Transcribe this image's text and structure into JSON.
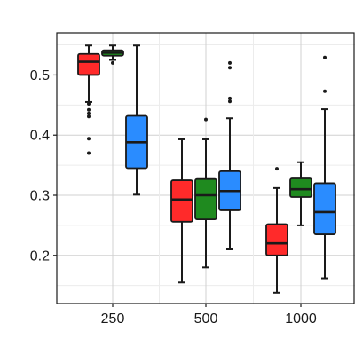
{
  "chart_data": {
    "type": "box",
    "title": "",
    "xlabel": "",
    "ylabel": "",
    "categories": [
      "250",
      "500",
      "1000"
    ],
    "ylim": [
      0.12,
      0.57
    ],
    "yticks": [
      0.2,
      0.3,
      0.4,
      0.5
    ],
    "y_minor_ticks": [
      0.15,
      0.25,
      0.35,
      0.45,
      0.55
    ],
    "grid": true,
    "legend": "none",
    "series": [
      {
        "color": "#ff2a2a",
        "boxes": [
          {
            "category": "250",
            "min": 0.455,
            "q1": 0.5,
            "median": 0.522,
            "q3": 0.535,
            "max": 0.549,
            "outliers": [
              0.452,
              0.442,
              0.436,
              0.431,
              0.394,
              0.37
            ]
          },
          {
            "category": "500",
            "min": 0.155,
            "q1": 0.256,
            "median": 0.293,
            "q3": 0.325,
            "max": 0.393,
            "outliers": []
          },
          {
            "category": "1000",
            "min": 0.138,
            "q1": 0.2,
            "median": 0.22,
            "q3": 0.252,
            "max": 0.312,
            "outliers": [
              0.344
            ]
          }
        ]
      },
      {
        "color": "#1f8a1f",
        "boxes": [
          {
            "category": "250",
            "min": 0.525,
            "q1": 0.532,
            "median": 0.537,
            "q3": 0.541,
            "max": 0.549,
            "outliers": [
              0.52
            ]
          },
          {
            "category": "500",
            "min": 0.18,
            "q1": 0.26,
            "median": 0.3,
            "q3": 0.327,
            "max": 0.393,
            "outliers": [
              0.426
            ]
          },
          {
            "category": "1000",
            "min": 0.25,
            "q1": 0.297,
            "median": 0.31,
            "q3": 0.328,
            "max": 0.355,
            "outliers": []
          }
        ]
      },
      {
        "color": "#2a8cff",
        "boxes": [
          {
            "category": "250",
            "min": 0.301,
            "q1": 0.345,
            "median": 0.388,
            "q3": 0.432,
            "max": 0.549,
            "outliers": []
          },
          {
            "category": "500",
            "min": 0.21,
            "q1": 0.275,
            "median": 0.307,
            "q3": 0.34,
            "max": 0.428,
            "outliers": [
              0.52,
              0.512,
              0.461,
              0.456
            ]
          },
          {
            "category": "1000",
            "min": 0.162,
            "q1": 0.235,
            "median": 0.272,
            "q3": 0.32,
            "max": 0.443,
            "outliers": [
              0.529,
              0.473
            ]
          }
        ]
      }
    ]
  }
}
